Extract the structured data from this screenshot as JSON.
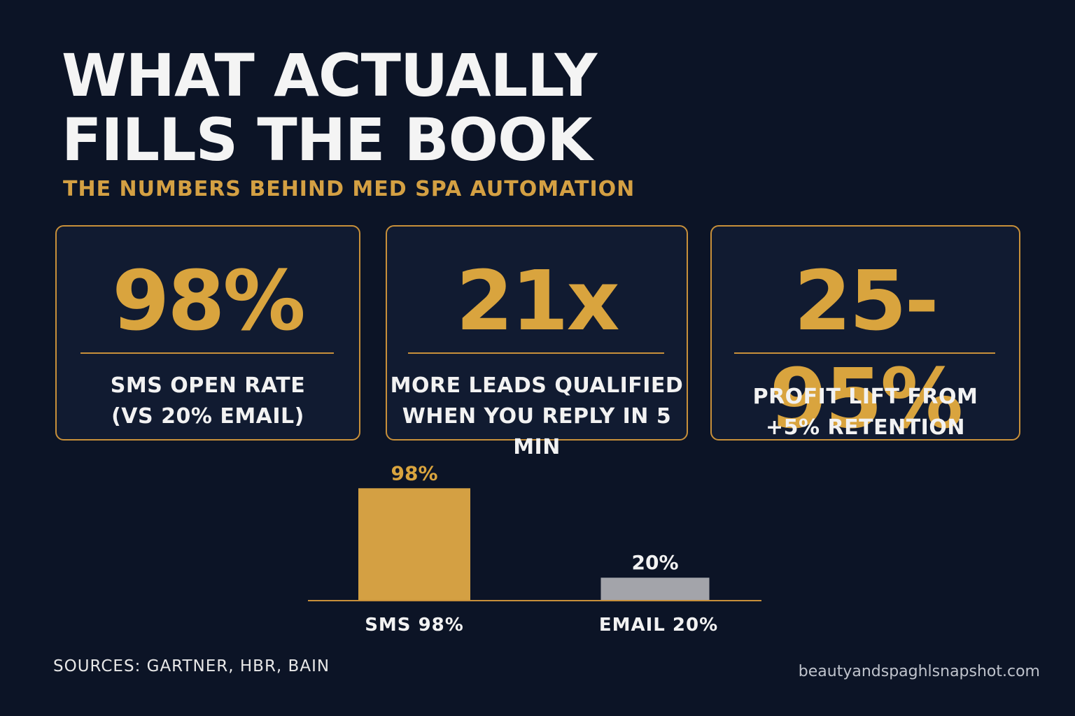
{
  "title": {
    "line1": "WHAT ACTUALLY",
    "line2": "FILLS THE BOOK"
  },
  "subtitle": "THE NUMBERS BEHIND MED SPA AUTOMATION",
  "cards": [
    {
      "value": "98%",
      "line1": "SMS OPEN RATE",
      "line2": "(VS 20% EMAIL)"
    },
    {
      "value": "21x",
      "line1": "MORE LEADS QUALIFIED",
      "line2": "WHEN YOU REPLY IN 5 MIN"
    },
    {
      "value": "25-95%",
      "line1": "PROFIT LIFT FROM",
      "line2": "+5% RETENTION"
    }
  ],
  "colors": {
    "background": "#0c1426",
    "accent": "#d9a43e",
    "sms_bar": "#d4a043",
    "email_bar": "#a3a4aa"
  },
  "chart_data": {
    "type": "bar",
    "categories": [
      "SMS 98%",
      "EMAIL 20%"
    ],
    "values": [
      98,
      20
    ],
    "value_labels": [
      "98%",
      "20%"
    ],
    "bar_colors": [
      "#d4a043",
      "#a3a4aa"
    ],
    "label_colors": [
      "#d9a43e",
      "#f2f2f2"
    ],
    "ylim": [
      0,
      100
    ],
    "grid": false
  },
  "footer": {
    "sources": "SOURCES: GARTNER, HBR, BAIN",
    "site": "beautyandspaghlsnapshot.com"
  }
}
